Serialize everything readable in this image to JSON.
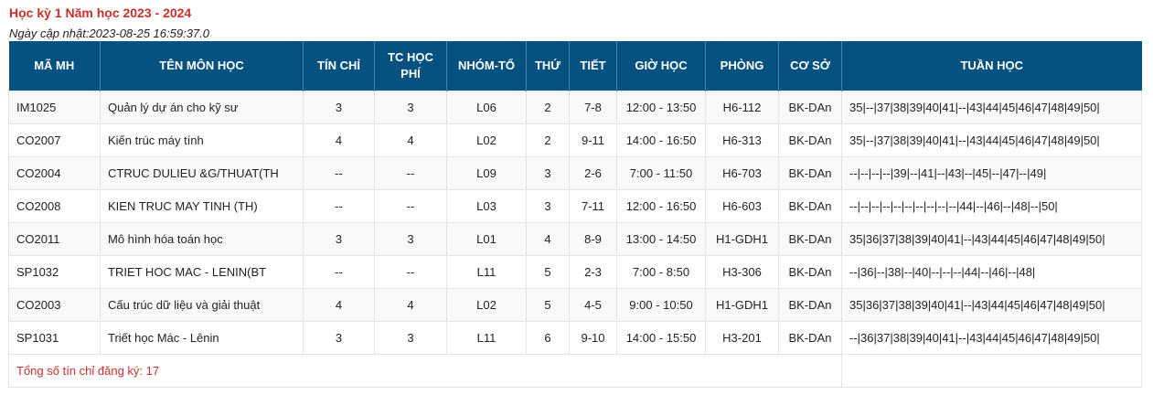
{
  "page": {
    "title": "Học kỳ 1 Năm học 2023 - 2024",
    "updated": "Ngày cập nhật:2023-08-25 16:59:37.0"
  },
  "table": {
    "headers": [
      "MÃ MH",
      "TÊN MÔN HỌC",
      "TÍN CHỈ",
      "TC HỌC PHÍ",
      "NHÓM-TỔ",
      "THỨ",
      "TIẾT",
      "GIỜ HỌC",
      "PHÒNG",
      "CƠ SỞ",
      "TUẦN HỌC"
    ],
    "rows": [
      [
        "IM1025",
        "Quản lý dự án cho kỹ sư",
        "3",
        "3",
        "L06",
        "2",
        "7-8",
        "12:00 - 13:50",
        "H6-112",
        "BK-DAn",
        "35|--|37|38|39|40|41|--|43|44|45|46|47|48|49|50|"
      ],
      [
        "CO2007",
        "Kiến trúc máy tính",
        "4",
        "4",
        "L02",
        "2",
        "9-11",
        "14:00 - 16:50",
        "H6-313",
        "BK-DAn",
        "35|--|37|38|39|40|41|--|43|44|45|46|47|48|49|50|"
      ],
      [
        "CO2004",
        "CTRUC DULIEU &G/THUAT(TH",
        "--",
        "--",
        "L09",
        "3",
        "2-6",
        "7:00 - 11:50",
        "H6-703",
        "BK-DAn",
        "--|--|--|--|39|--|41|--|43|--|45|--|47|--|49|"
      ],
      [
        "CO2008",
        "KIEN TRUC MAY TINH (TH)",
        "--",
        "--",
        "L03",
        "3",
        "7-11",
        "12:00 - 16:50",
        "H6-603",
        "BK-DAn",
        "--|--|--|--|--|--|--|--|--|--|44|--|46|--|48|--|50|"
      ],
      [
        "CO2011",
        "Mô hình hóa toán học",
        "3",
        "3",
        "L01",
        "4",
        "8-9",
        "13:00 - 14:50",
        "H1-GDH1",
        "BK-DAn",
        "35|36|37|38|39|40|41|--|43|44|45|46|47|48|49|50|"
      ],
      [
        "SP1032",
        "TRIET HOC MAC - LENIN(BT",
        "--",
        "--",
        "L11",
        "5",
        "2-3",
        "7:00 - 8:50",
        "H3-306",
        "BK-DAn",
        "--|36|--|38|--|40|--|--|--|44|--|46|--|48|"
      ],
      [
        "CO2003",
        "Cấu trúc dữ liệu và giải thuật",
        "4",
        "4",
        "L02",
        "5",
        "4-5",
        "9:00 - 10:50",
        "H1-GDH1",
        "BK-DAn",
        "35|36|37|38|39|40|41|--|43|44|45|46|47|48|49|50|"
      ],
      [
        "SP1031",
        "Triết học Mác - Lênin",
        "3",
        "3",
        "L11",
        "6",
        "9-10",
        "14:00 - 15:50",
        "H3-201",
        "BK-DAn",
        "--|36|37|38|39|40|41|--|43|44|45|46|47|48|49|50|"
      ]
    ],
    "total": "Tổng số tín chỉ đăng ký: 17"
  }
}
